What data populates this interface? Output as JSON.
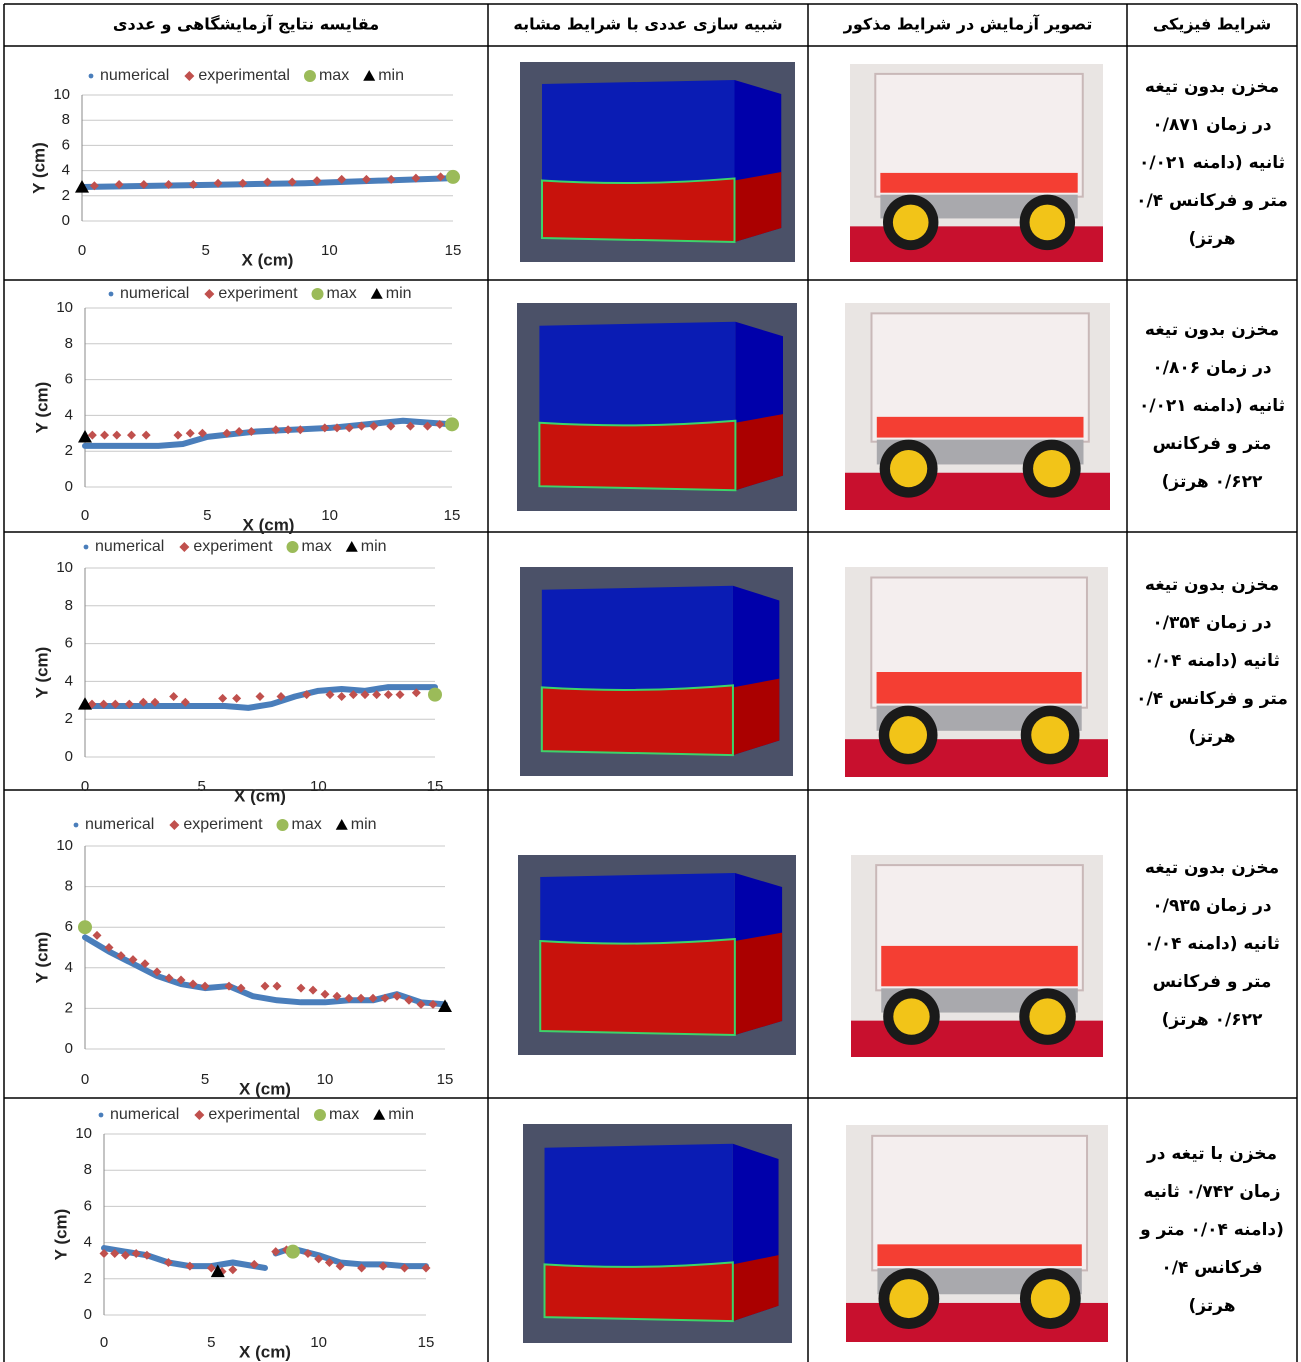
{
  "table": {
    "headers": {
      "comparison": "مقایسه نتایج آزمایشگاهی و عددی",
      "simulation": "شبیه سازی عددی با شرایط مشابه",
      "photo": "تصویر آزمایش در شرایط مذکور",
      "conditions": "شرایط فیزیکی"
    },
    "rows": [
      {
        "conditions": [
          "مخزن بدون تیغه",
          "در زمان ۰/۸۷۱",
          "ثانیه (دامنه ۰/۰۲۱",
          "متر و فرکانس ۰/۴",
          "هرتز)"
        ],
        "chart": {
          "type": "scatter",
          "xlabel": "X (cm)",
          "ylabel": "Y (cm)",
          "xlim": [
            0,
            15
          ],
          "ylim": [
            0,
            10
          ],
          "xticks": [
            0,
            5,
            10,
            15
          ],
          "yticks": [
            0,
            2,
            4,
            6,
            8,
            10
          ],
          "grid": true,
          "series": [
            {
              "name": "numerical",
              "color": "#4a7ebb",
              "marker": "line",
              "x": [
                0,
                3,
                6,
                9,
                12,
                15
              ],
              "values": [
                2.7,
                2.8,
                2.9,
                3.0,
                3.2,
                3.4
              ]
            },
            {
              "name": "experimental",
              "color": "#c0504d",
              "marker": "diamond",
              "x": [
                0.5,
                1.5,
                2.5,
                3.5,
                4.5,
                5.5,
                6.5,
                7.5,
                8.5,
                9.5,
                10.5,
                11.5,
                12.5,
                13.5,
                14.5
              ],
              "values": [
                2.8,
                2.9,
                2.9,
                2.9,
                2.9,
                3.0,
                3.0,
                3.1,
                3.1,
                3.2,
                3.3,
                3.3,
                3.3,
                3.4,
                3.5
              ]
            },
            {
              "name": "max",
              "color": "#9bbb59",
              "marker": "circle",
              "x": [
                15
              ],
              "values": [
                3.5
              ]
            },
            {
              "name": "min",
              "color": "#000000",
              "marker": "triangle",
              "x": [
                0
              ],
              "values": [
                2.7
              ]
            }
          ]
        }
      },
      {
        "conditions": [
          "مخزن بدون تیغه",
          "در زمان ۰/۸۰۶",
          "ثانیه (دامنه ۰/۰۲۱",
          "متر و فرکانس",
          "۰/۶۲۲ هرتز)"
        ],
        "chart": {
          "type": "scatter",
          "xlabel": "X (cm)",
          "ylabel": "Y (cm)",
          "xlim": [
            0,
            15
          ],
          "ylim": [
            0,
            10
          ],
          "xticks": [
            0,
            5,
            10,
            15
          ],
          "yticks": [
            0,
            2,
            4,
            6,
            8,
            10
          ],
          "grid": true,
          "series": [
            {
              "name": "numerical",
              "color": "#4a7ebb",
              "marker": "line",
              "x": [
                0,
                3,
                4,
                5,
                7,
                10,
                13,
                15
              ],
              "values": [
                2.3,
                2.3,
                2.4,
                2.8,
                3.1,
                3.3,
                3.7,
                3.5
              ]
            },
            {
              "name": "experiment",
              "color": "#c0504d",
              "marker": "diamond",
              "x": [
                0.3,
                0.8,
                1.3,
                1.9,
                2.5,
                3.8,
                4.3,
                4.8,
                5.8,
                6.3,
                6.8,
                7.8,
                8.3,
                8.8,
                9.8,
                10.3,
                10.8,
                11.3,
                11.8,
                12.5,
                13.3,
                14,
                14.5
              ],
              "values": [
                2.9,
                2.9,
                2.9,
                2.9,
                2.9,
                2.9,
                3.0,
                3.0,
                3.0,
                3.1,
                3.1,
                3.2,
                3.2,
                3.2,
                3.3,
                3.3,
                3.3,
                3.4,
                3.4,
                3.4,
                3.4,
                3.4,
                3.5
              ]
            },
            {
              "name": "max",
              "color": "#9bbb59",
              "marker": "circle",
              "x": [
                15
              ],
              "values": [
                3.5
              ]
            },
            {
              "name": "min",
              "color": "#000000",
              "marker": "triangle",
              "x": [
                0
              ],
              "values": [
                2.8
              ]
            }
          ]
        }
      },
      {
        "conditions": [
          "مخزن بدون تیغه",
          "در زمان ۰/۳۵۴",
          "ثانیه (دامنه ۰/۰۴",
          "متر و فرکانس ۰/۴",
          "هرتز)"
        ],
        "chart": {
          "type": "scatter",
          "xlabel": "X (cm)",
          "ylabel": "Y (cm)",
          "xlim": [
            0,
            15
          ],
          "ylim": [
            0,
            10
          ],
          "xticks": [
            0,
            5,
            10,
            15
          ],
          "yticks": [
            0,
            2,
            4,
            6,
            8,
            10
          ],
          "grid": true,
          "series": [
            {
              "name": "numerical",
              "color": "#4a7ebb",
              "marker": "line",
              "x": [
                0,
                5,
                6,
                7,
                8,
                9,
                10,
                11,
                12,
                13,
                15
              ],
              "values": [
                2.7,
                2.7,
                2.7,
                2.6,
                2.8,
                3.2,
                3.5,
                3.6,
                3.5,
                3.7,
                3.7
              ]
            },
            {
              "name": "experiment",
              "color": "#c0504d",
              "marker": "diamond",
              "x": [
                0.3,
                0.8,
                1.3,
                1.9,
                2.5,
                3.0,
                3.8,
                4.3,
                5.9,
                6.5,
                7.5,
                8.4,
                9.5,
                10.5,
                11.0,
                11.5,
                12.0,
                12.5,
                13.0,
                13.5,
                14.2
              ],
              "values": [
                2.8,
                2.8,
                2.8,
                2.8,
                2.9,
                2.9,
                3.2,
                2.9,
                3.1,
                3.1,
                3.2,
                3.2,
                3.3,
                3.3,
                3.2,
                3.3,
                3.3,
                3.3,
                3.3,
                3.3,
                3.4
              ]
            },
            {
              "name": "max",
              "color": "#9bbb59",
              "marker": "circle",
              "x": [
                15
              ],
              "values": [
                3.3
              ]
            },
            {
              "name": "min",
              "color": "#000000",
              "marker": "triangle",
              "x": [
                0
              ],
              "values": [
                2.8
              ]
            }
          ]
        }
      },
      {
        "conditions": [
          "مخزن بدون تیغه",
          "در زمان ۰/۹۳۵",
          "ثانیه (دامنه ۰/۰۴",
          "متر و فرکانس",
          "۰/۶۲۲ هرتز)"
        ],
        "chart": {
          "type": "scatter",
          "xlabel": "X (cm)",
          "ylabel": "Y (cm)",
          "xlim": [
            0,
            15
          ],
          "ylim": [
            0,
            10
          ],
          "xticks": [
            0,
            5,
            10,
            15
          ],
          "yticks": [
            0,
            2,
            4,
            6,
            8,
            10
          ],
          "grid": true,
          "series": [
            {
              "name": "numerical",
              "color": "#4a7ebb",
              "marker": "line",
              "x": [
                0,
                1,
                2,
                3,
                4,
                5,
                6,
                7,
                8,
                9,
                10,
                11,
                12,
                13,
                14,
                15
              ],
              "values": [
                5.5,
                4.8,
                4.2,
                3.6,
                3.2,
                3.0,
                3.1,
                2.6,
                2.4,
                2.3,
                2.3,
                2.4,
                2.4,
                2.7,
                2.3,
                2.2
              ]
            },
            {
              "name": "experiment",
              "color": "#c0504d",
              "marker": "diamond",
              "x": [
                0.5,
                1,
                1.5,
                2,
                2.5,
                3,
                3.5,
                4,
                4.5,
                5,
                6,
                6.5,
                7.5,
                8,
                9,
                9.5,
                10,
                10.5,
                11,
                11.5,
                12,
                12.5,
                13,
                13.5,
                14,
                14.5
              ],
              "values": [
                5.6,
                5.0,
                4.6,
                4.4,
                4.2,
                3.8,
                3.5,
                3.4,
                3.2,
                3.1,
                3.1,
                3.0,
                3.1,
                3.1,
                3.0,
                2.9,
                2.7,
                2.6,
                2.5,
                2.5,
                2.5,
                2.5,
                2.6,
                2.4,
                2.2,
                2.2
              ]
            },
            {
              "name": "max",
              "color": "#9bbb59",
              "marker": "circle",
              "x": [
                0
              ],
              "values": [
                6.0
              ]
            },
            {
              "name": "min",
              "color": "#000000",
              "marker": "triangle",
              "x": [
                15
              ],
              "values": [
                2.1
              ]
            }
          ]
        }
      },
      {
        "conditions": [
          "مخزن با تیغه در",
          "زمان ۰/۷۴۲ ثانیه",
          "(دامنه ۰/۰۴ متر و",
          "فرکانس ۰/۴",
          "هرتز)"
        ],
        "chart": {
          "type": "scatter",
          "xlabel": "X (cm)",
          "ylabel": "Y (cm)",
          "xlim": [
            0,
            15
          ],
          "ylim": [
            0,
            10
          ],
          "xticks": [
            0,
            5,
            10,
            15
          ],
          "yticks": [
            0,
            2,
            4,
            6,
            8,
            10
          ],
          "grid": true,
          "series": [
            {
              "name": "numerical",
              "color": "#4a7ebb",
              "marker": "line",
              "x": [
                0,
                1,
                2,
                3,
                4,
                5,
                6,
                7,
                7.5,
                7.8,
                8,
                8.5,
                9,
                10,
                11,
                12,
                13,
                14,
                15
              ],
              "values": [
                3.7,
                3.5,
                3.3,
                2.9,
                2.7,
                2.7,
                2.9,
                2.7,
                2.6,
                null,
                3.4,
                3.6,
                3.6,
                3.3,
                2.9,
                2.8,
                2.8,
                2.7,
                2.7
              ]
            },
            {
              "name": "experimental",
              "color": "#c0504d",
              "marker": "diamond",
              "x": [
                0,
                0.5,
                1,
                1.5,
                2,
                3,
                4,
                5,
                5.5,
                6,
                7,
                8,
                8.5,
                9.5,
                10,
                10.5,
                11,
                12,
                13,
                14,
                15
              ],
              "values": [
                3.4,
                3.4,
                3.3,
                3.4,
                3.3,
                2.9,
                2.7,
                2.6,
                2.4,
                2.5,
                2.8,
                3.5,
                3.6,
                3.4,
                3.1,
                2.9,
                2.7,
                2.6,
                2.7,
                2.6,
                2.6
              ]
            },
            {
              "name": "max",
              "color": "#9bbb59",
              "marker": "circle",
              "x": [
                8.8
              ],
              "values": [
                3.5
              ]
            },
            {
              "name": "min",
              "color": "#000000",
              "marker": "triangle",
              "x": [
                5.3
              ],
              "values": [
                2.4
              ]
            }
          ]
        }
      }
    ]
  }
}
